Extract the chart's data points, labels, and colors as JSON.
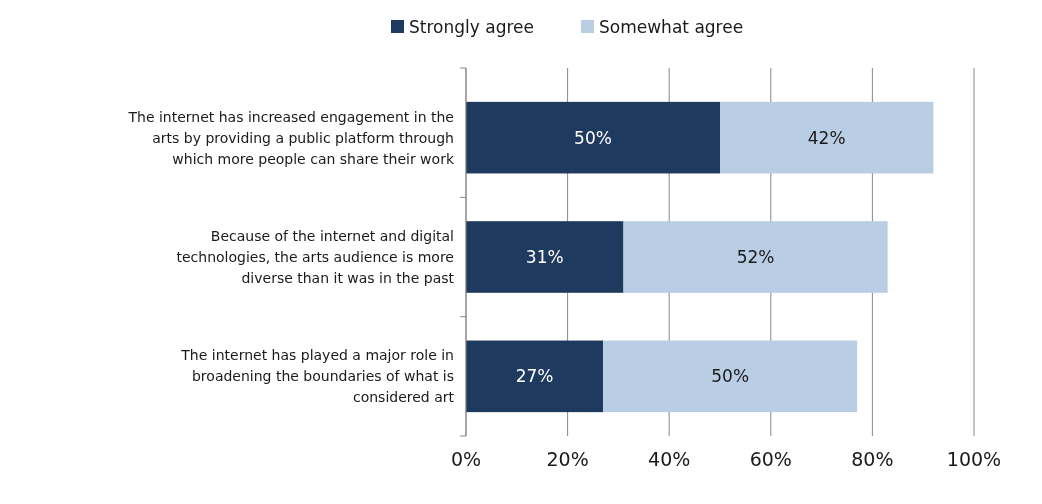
{
  "chart_data": {
    "type": "bar",
    "orientation": "horizontal",
    "stacked": true,
    "categories": [
      "The internet has increased engagement in the arts by providing a public platform through which more people can share their work",
      "Because of the internet and digital technologies, the arts audience is more diverse than it was in the past",
      "The internet has played a major role in broadening the boundaries of what is considered art"
    ],
    "series": [
      {
        "name": "Strongly agree",
        "color": "#1f3a5f",
        "values": [
          50,
          31,
          27
        ],
        "value_labels": [
          "50%",
          "31%",
          "27%"
        ]
      },
      {
        "name": "Somewhat agree",
        "color": "#b9cde5",
        "values": [
          42,
          52,
          50
        ],
        "value_labels": [
          "42%",
          "52%",
          "50%"
        ]
      }
    ],
    "xlim": [
      0,
      100
    ],
    "xticks": [
      {
        "value": 0,
        "label": "0%"
      },
      {
        "value": 20,
        "label": "20%"
      },
      {
        "value": 40,
        "label": "40%"
      },
      {
        "value": 60,
        "label": "60%"
      },
      {
        "value": 80,
        "label": "80%"
      },
      {
        "value": 100,
        "label": "100%"
      }
    ],
    "grid": "x",
    "legend": "top"
  }
}
